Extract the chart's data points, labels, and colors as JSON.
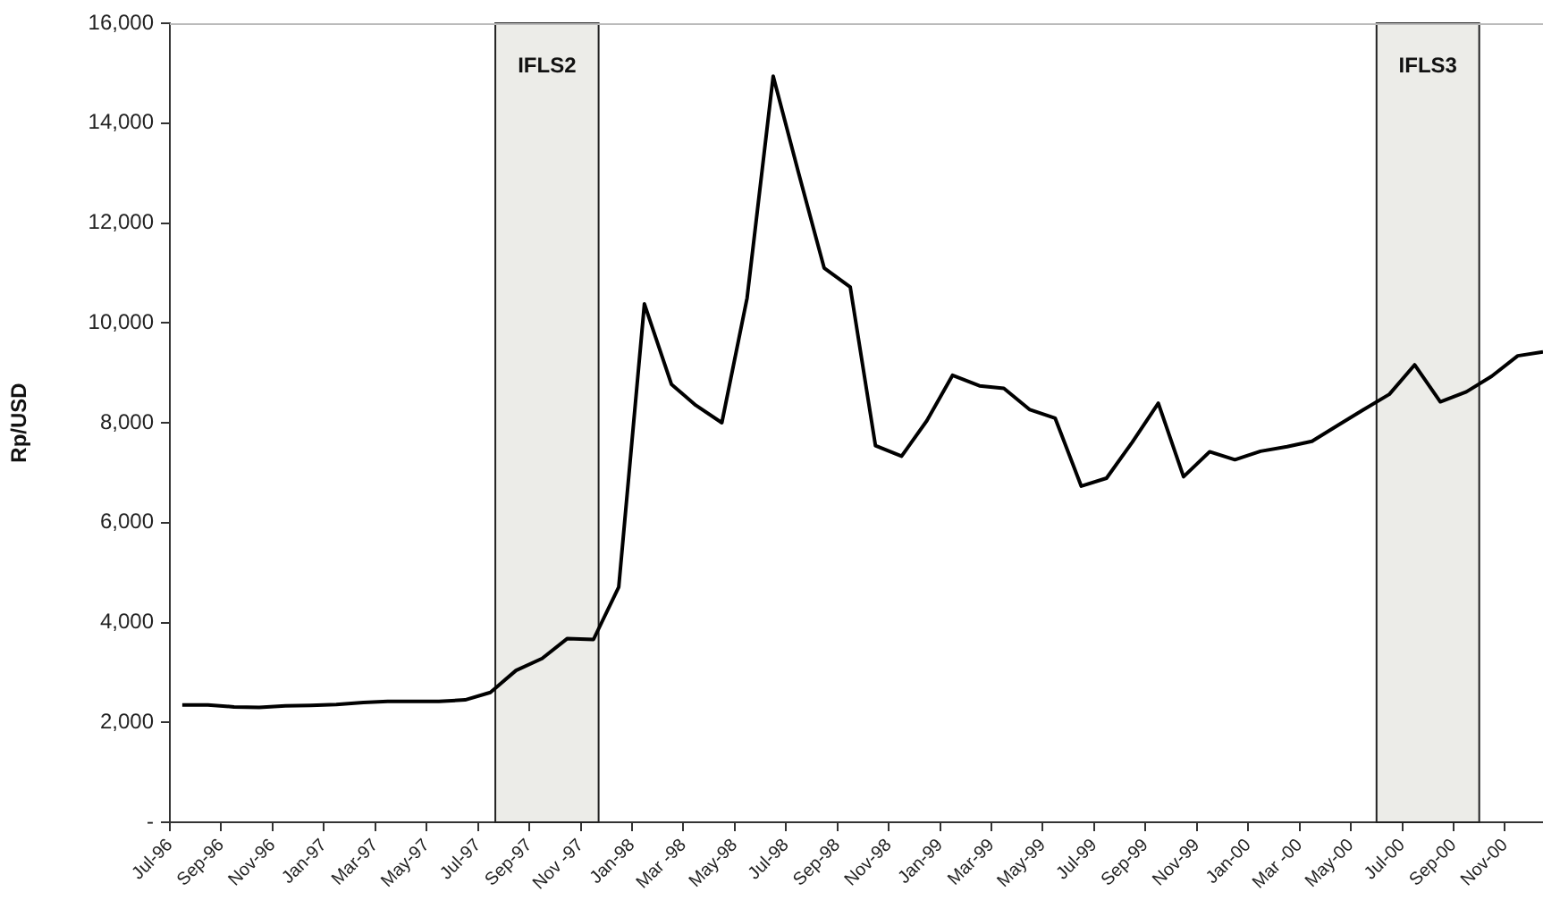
{
  "chart_data": {
    "type": "line",
    "ylabel": "Rp/USD",
    "x": [
      "1996-07-16",
      "1996-08-16",
      "1996-09-16",
      "1996-10-16",
      "1996-11-16",
      "1996-12-16",
      "1997-01-16",
      "1997-02-16",
      "1997-03-16",
      "1997-04-16",
      "1997-05-16",
      "1997-06-16",
      "1997-07-16",
      "1997-08-16",
      "1997-09-16",
      "1997-10-16",
      "1997-11-16",
      "1997-12-16",
      "1998-01-16",
      "1998-02-16",
      "1998-03-16",
      "1998-04-16",
      "1998-05-16",
      "1998-06-16",
      "1998-07-16",
      "1998-08-16",
      "1998-09-16",
      "1998-10-16",
      "1998-11-16",
      "1998-12-16",
      "1999-01-16",
      "1999-02-16",
      "1999-03-16",
      "1999-04-16",
      "1999-05-16",
      "1999-06-16",
      "1999-07-16",
      "1999-08-16",
      "1999-09-16",
      "1999-10-16",
      "1999-11-16",
      "1999-12-16",
      "2000-01-16",
      "2000-02-16",
      "2000-03-16",
      "2000-04-16",
      "2000-05-16",
      "2000-06-16",
      "2000-07-16",
      "2000-08-16",
      "2000-09-16",
      "2000-10-16",
      "2000-11-16",
      "2000-12-16"
    ],
    "series": [
      {
        "color": "#000000",
        "values": [
          2350,
          2350,
          2310,
          2300,
          2330,
          2340,
          2360,
          2400,
          2420,
          2420,
          2420,
          2450,
          2600,
          3040,
          3280,
          3680,
          3660,
          4710,
          10380,
          8770,
          8350,
          8000,
          10500,
          14940,
          13010,
          11100,
          10720,
          7540,
          7330,
          8040,
          8950,
          8740,
          8690,
          8260,
          8090,
          6730,
          6890,
          7610,
          8390,
          6920,
          7420,
          7260,
          7430,
          7520,
          7630,
          7950,
          8260,
          8570,
          9160,
          8420,
          8620,
          8930,
          9340,
          9420
        ]
      }
    ],
    "xlim": [
      "1996-07",
      "2000-12-16"
    ],
    "xticks": [
      {
        "value": "1996-07",
        "label": "Jul-96"
      },
      {
        "value": "1996-09",
        "label": "Sep-96"
      },
      {
        "value": "1996-11",
        "label": "Nov-96"
      },
      {
        "value": "1997-01",
        "label": "Jan-97"
      },
      {
        "value": "1997-03",
        "label": "Mar-97"
      },
      {
        "value": "1997-05",
        "label": "May-97"
      },
      {
        "value": "1997-07",
        "label": "Jul-97"
      },
      {
        "value": "1997-09",
        "label": "Sep-97"
      },
      {
        "value": "1997-11",
        "label": "Nov -97"
      },
      {
        "value": "1998-01",
        "label": "Jan-98"
      },
      {
        "value": "1998-03",
        "label": "Mar -98"
      },
      {
        "value": "1998-05",
        "label": "May-98"
      },
      {
        "value": "1998-07",
        "label": "Jul-98"
      },
      {
        "value": "1998-09",
        "label": "Sep-98"
      },
      {
        "value": "1998-11",
        "label": "Nov-98"
      },
      {
        "value": "1999-01",
        "label": "Jan-99"
      },
      {
        "value": "1999-03",
        "label": "Mar-99"
      },
      {
        "value": "1999-05",
        "label": "May-99"
      },
      {
        "value": "1999-07",
        "label": "Jul-99"
      },
      {
        "value": "1999-09",
        "label": "Sep-99"
      },
      {
        "value": "1999-11",
        "label": "Nov-99"
      },
      {
        "value": "2000-01",
        "label": "Jan-00"
      },
      {
        "value": "2000-03",
        "label": "Mar -00"
      },
      {
        "value": "2000-05",
        "label": "May-00"
      },
      {
        "value": "2000-07",
        "label": "Jul-00"
      },
      {
        "value": "2000-09",
        "label": "Sep-00"
      },
      {
        "value": "2000-11",
        "label": "Nov-00"
      }
    ],
    "ylim": [
      0,
      16000
    ],
    "yticks": [
      {
        "value": 0,
        "label": "-"
      },
      {
        "value": 2000,
        "label": "2,000"
      },
      {
        "value": 4000,
        "label": "4,000"
      },
      {
        "value": 6000,
        "label": "6,000"
      },
      {
        "value": 8000,
        "label": "8,000"
      },
      {
        "value": 10000,
        "label": "10,000"
      },
      {
        "value": 12000,
        "label": "12,000"
      },
      {
        "value": 14000,
        "label": "14,000"
      },
      {
        "value": 16000,
        "label": "16,000"
      }
    ],
    "bands": [
      {
        "axis": "x",
        "from": "1997-07-22",
        "to": "1997-11-22",
        "label": "IFLS2",
        "color": "#ececE8"
      },
      {
        "axis": "x",
        "from": "2000-06",
        "to": "2000-10",
        "label": "IFLS3",
        "color": "#ececE8"
      }
    ],
    "grid": false,
    "legend": false
  }
}
